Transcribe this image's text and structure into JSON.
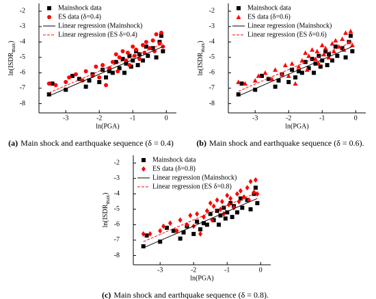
{
  "chart_data": [
    {
      "type": "scatter",
      "caption_label": "(a)",
      "caption": "Main shock and earthquake sequence (δ = 0.4)",
      "x_label": "ln(PGA)",
      "y_label": [
        "ln(ISDR",
        "max",
        ")"
      ],
      "xlim": [
        -3.8,
        0.3
      ],
      "ylim": [
        -8.6,
        -1.5
      ],
      "xticks": [
        -3,
        -2,
        -1,
        0
      ],
      "yticks": [
        -8,
        -7,
        -6,
        -5,
        -4,
        -3,
        -2
      ],
      "series": [
        {
          "name": "Mainshock data",
          "color": "#000000",
          "marker": "square",
          "x": [
            -3.5,
            -3.4,
            -3.0,
            -2.8,
            -2.6,
            -2.4,
            -2.3,
            -2.2,
            -2.0,
            -1.9,
            -1.8,
            -1.7,
            -1.6,
            -1.5,
            -1.4,
            -1.3,
            -1.25,
            -1.2,
            -1.1,
            -1.05,
            -1.0,
            -0.9,
            -0.85,
            -0.8,
            -0.7,
            -0.6,
            -0.55,
            -0.4,
            -0.3,
            -0.2,
            -0.1,
            -0.15
          ],
          "values": [
            -7.4,
            -6.7,
            -7.1,
            -6.2,
            -6.4,
            -6.9,
            -6.5,
            -6.1,
            -6.6,
            -5.8,
            -6.3,
            -5.9,
            -6.0,
            -5.3,
            -5.7,
            -5.1,
            -6.0,
            -5.4,
            -4.9,
            -5.6,
            -5.2,
            -4.6,
            -5.5,
            -4.8,
            -5.2,
            -4.3,
            -4.9,
            -4.4,
            -5.0,
            -4.0,
            -4.6,
            -3.6
          ]
        },
        {
          "name": "ES data (δ=0.4)",
          "color": "#ff0000",
          "marker": "circle",
          "x": [
            -3.5,
            -3.3,
            -3.0,
            -2.9,
            -2.7,
            -2.5,
            -2.4,
            -2.2,
            -2.1,
            -2.0,
            -1.9,
            -1.8,
            -1.7,
            -1.6,
            -1.5,
            -1.45,
            -1.4,
            -1.3,
            -1.2,
            -1.15,
            -1.1,
            -1.0,
            -0.95,
            -0.9,
            -0.8,
            -0.7,
            -0.65,
            -0.6,
            -0.5,
            -0.4,
            -0.35,
            -0.3,
            -0.2,
            -0.15,
            -0.1
          ],
          "values": [
            -6.7,
            -6.8,
            -6.6,
            -6.3,
            -6.1,
            -6.5,
            -5.9,
            -6.2,
            -5.6,
            -6.3,
            -5.5,
            -6.8,
            -5.7,
            -5.3,
            -4.8,
            -5.9,
            -5.0,
            -4.6,
            -5.2,
            -4.7,
            -5.5,
            -4.3,
            -4.9,
            -4.5,
            -5.1,
            -4.2,
            -4.7,
            -4.0,
            -4.4,
            -3.9,
            -4.6,
            -3.5,
            -4.1,
            -3.4,
            -4.3
          ]
        },
        {
          "name": "Linear regression (Mainshock)",
          "color": "#000000",
          "type": "line",
          "dash": false,
          "x": [
            -3.5,
            -0.1
          ],
          "values": [
            -7.5,
            -4.3
          ]
        },
        {
          "name": "Linear regression (ES δ=0.4)",
          "color": "#ff0000",
          "type": "line",
          "dash": true,
          "x": [
            -3.5,
            -0.1
          ],
          "values": [
            -7.3,
            -4.1
          ]
        }
      ]
    },
    {
      "type": "scatter",
      "caption_label": "(b)",
      "caption": "Main shock and earthquake sequence (δ = 0.6).",
      "x_label": "ln(PGA)",
      "y_label": [
        "ln(ISDR",
        "max",
        ")"
      ],
      "xlim": [
        -3.8,
        0.3
      ],
      "ylim": [
        -8.6,
        -1.5
      ],
      "xticks": [
        -3,
        -2,
        -1,
        0
      ],
      "yticks": [
        -8,
        -7,
        -6,
        -5,
        -4,
        -3,
        -2
      ],
      "series": [
        {
          "name": "Mainshock data",
          "color": "#000000",
          "marker": "square",
          "x": [
            -3.5,
            -3.4,
            -3.0,
            -2.8,
            -2.6,
            -2.4,
            -2.3,
            -2.2,
            -2.0,
            -1.9,
            -1.8,
            -1.7,
            -1.6,
            -1.5,
            -1.4,
            -1.3,
            -1.25,
            -1.2,
            -1.1,
            -1.05,
            -1.0,
            -0.9,
            -0.85,
            -0.8,
            -0.7,
            -0.6,
            -0.55,
            -0.4,
            -0.3,
            -0.2,
            -0.1,
            -0.15
          ],
          "values": [
            -7.4,
            -6.7,
            -7.1,
            -6.2,
            -6.4,
            -6.9,
            -6.5,
            -6.1,
            -6.6,
            -5.8,
            -6.3,
            -5.9,
            -6.0,
            -5.3,
            -5.7,
            -5.1,
            -6.0,
            -5.4,
            -4.9,
            -5.6,
            -5.2,
            -4.6,
            -5.5,
            -4.8,
            -5.2,
            -4.3,
            -4.9,
            -4.4,
            -5.0,
            -4.0,
            -4.6,
            -3.6
          ]
        },
        {
          "name": "ES data (δ=0.6)",
          "color": "#ff0000",
          "marker": "triangle",
          "x": [
            -3.5,
            -3.3,
            -3.0,
            -2.9,
            -2.7,
            -2.5,
            -2.4,
            -2.2,
            -2.1,
            -2.0,
            -1.9,
            -1.8,
            -1.7,
            -1.6,
            -1.5,
            -1.45,
            -1.4,
            -1.3,
            -1.2,
            -1.15,
            -1.1,
            -1.0,
            -0.95,
            -0.9,
            -0.8,
            -0.7,
            -0.65,
            -0.6,
            -0.5,
            -0.4,
            -0.35,
            -0.3,
            -0.2,
            -0.15,
            -0.1
          ],
          "values": [
            -6.6,
            -6.7,
            -6.5,
            -6.2,
            -6.0,
            -6.4,
            -5.8,
            -6.1,
            -5.5,
            -6.2,
            -5.4,
            -6.7,
            -5.6,
            -5.2,
            -4.7,
            -5.8,
            -4.9,
            -4.5,
            -5.1,
            -4.6,
            -5.4,
            -4.2,
            -4.8,
            -4.4,
            -5.0,
            -4.1,
            -4.6,
            -3.9,
            -4.3,
            -3.8,
            -4.5,
            -3.4,
            -4.0,
            -3.3,
            -4.2
          ]
        },
        {
          "name": "Linear regression (Mainshock)",
          "color": "#000000",
          "type": "line",
          "dash": false,
          "x": [
            -3.5,
            -0.1
          ],
          "values": [
            -7.5,
            -4.3
          ]
        },
        {
          "name": "Linear regression (ES δ=0.6)",
          "color": "#ff0000",
          "type": "line",
          "dash": true,
          "x": [
            -3.5,
            -0.1
          ],
          "values": [
            -7.2,
            -4.0
          ]
        }
      ]
    },
    {
      "type": "scatter",
      "caption_label": "(c)",
      "caption": "Main shock and earthquake sequence (δ = 0.8).",
      "x_label": "ln(PGA)",
      "y_label": [
        "ln(ISDR",
        "max",
        ")"
      ],
      "xlim": [
        -3.8,
        0.3
      ],
      "ylim": [
        -8.6,
        -1.5
      ],
      "xticks": [
        -3,
        -2,
        -1,
        0
      ],
      "yticks": [
        -8,
        -7,
        -6,
        -5,
        -4,
        -3,
        -2
      ],
      "series": [
        {
          "name": "Mainshock data",
          "color": "#000000",
          "marker": "square",
          "x": [
            -3.5,
            -3.4,
            -3.0,
            -2.8,
            -2.6,
            -2.4,
            -2.3,
            -2.2,
            -2.0,
            -1.9,
            -1.8,
            -1.7,
            -1.6,
            -1.5,
            -1.4,
            -1.3,
            -1.25,
            -1.2,
            -1.1,
            -1.05,
            -1.0,
            -0.9,
            -0.85,
            -0.8,
            -0.7,
            -0.6,
            -0.55,
            -0.4,
            -0.3,
            -0.2,
            -0.1,
            -0.15
          ],
          "values": [
            -7.4,
            -6.7,
            -7.1,
            -6.2,
            -6.4,
            -6.9,
            -6.5,
            -6.1,
            -6.6,
            -5.8,
            -6.3,
            -5.9,
            -6.0,
            -5.3,
            -5.7,
            -5.1,
            -6.0,
            -5.4,
            -4.9,
            -5.6,
            -5.2,
            -4.6,
            -5.5,
            -4.8,
            -5.2,
            -4.3,
            -4.9,
            -4.4,
            -5.0,
            -4.0,
            -4.6,
            -3.6
          ]
        },
        {
          "name": "ES data (δ=0.8)",
          "color": "#ff0000",
          "marker": "diamond",
          "x": [
            -3.5,
            -3.3,
            -3.0,
            -2.9,
            -2.7,
            -2.5,
            -2.4,
            -2.2,
            -2.1,
            -2.0,
            -1.9,
            -1.8,
            -1.7,
            -1.6,
            -1.5,
            -1.45,
            -1.4,
            -1.3,
            -1.2,
            -1.15,
            -1.1,
            -1.0,
            -0.95,
            -0.9,
            -0.8,
            -0.7,
            -0.65,
            -0.6,
            -0.5,
            -0.4,
            -0.35,
            -0.3,
            -0.2,
            -0.15,
            -0.1
          ],
          "values": [
            -6.6,
            -6.6,
            -6.4,
            -6.1,
            -5.9,
            -6.4,
            -5.7,
            -6.0,
            -5.4,
            -6.1,
            -5.3,
            -6.6,
            -5.5,
            -5.1,
            -4.6,
            -5.7,
            -4.8,
            -4.4,
            -5.0,
            -4.5,
            -5.3,
            -4.1,
            -4.7,
            -4.3,
            -4.9,
            -4.0,
            -4.5,
            -3.8,
            -4.2,
            -3.6,
            -4.4,
            -3.2,
            -3.9,
            -3.1,
            -4.0
          ]
        },
        {
          "name": "Linear regression (Mainshock)",
          "color": "#000000",
          "type": "line",
          "dash": false,
          "x": [
            -3.5,
            -0.1
          ],
          "values": [
            -7.5,
            -4.3
          ]
        },
        {
          "name": "Linear regression (ES δ=0.8)",
          "color": "#ff0000",
          "type": "line",
          "dash": true,
          "x": [
            -3.5,
            -0.1
          ],
          "values": [
            -7.1,
            -3.9
          ]
        }
      ]
    }
  ]
}
